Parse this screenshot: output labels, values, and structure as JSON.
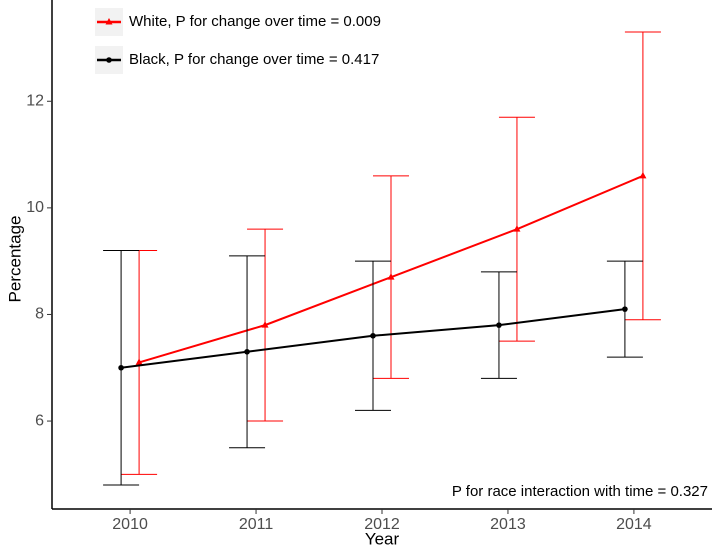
{
  "chart_data": {
    "type": "line",
    "x_label": "Year",
    "y_label": "Percentage",
    "x": [
      2010,
      2011,
      2012,
      2013,
      2014
    ],
    "xlim": [
      2009.38,
      2014.62
    ],
    "xticks": [
      2010,
      2011,
      2012,
      2013,
      2014
    ],
    "ylim": [
      4.35,
      13.9
    ],
    "yticks": [
      6,
      8,
      10,
      12
    ],
    "grid": false,
    "legend": "top-left",
    "series": [
      {
        "name": "White, P for change over time = 0.009",
        "color": "#ff0000",
        "marker": "triangle",
        "values": [
          7.1,
          7.8,
          8.7,
          9.6,
          10.6
        ],
        "lower": [
          5.0,
          6.0,
          6.8,
          7.5,
          7.9
        ],
        "upper": [
          9.2,
          9.6,
          10.6,
          11.7,
          13.3
        ]
      },
      {
        "name": "Black, P for change over time = 0.417",
        "color": "#000000",
        "marker": "circle",
        "values": [
          7.0,
          7.3,
          7.6,
          7.8,
          8.1
        ],
        "lower": [
          4.8,
          5.5,
          6.2,
          6.8,
          7.2
        ],
        "upper": [
          9.2,
          9.1,
          9.0,
          8.8,
          9.0
        ]
      }
    ],
    "annotation": "P for race interaction with time = 0.327"
  }
}
